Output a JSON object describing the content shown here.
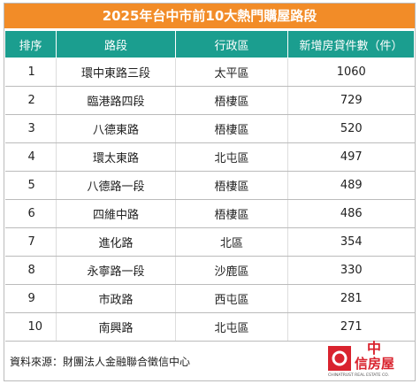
{
  "header": {
    "title": "2025年台中市前10大熱門購屋路段"
  },
  "table": {
    "columns": [
      "排序",
      "路段",
      "行政區",
      "新增房貸件數（件）"
    ],
    "rows": [
      [
        1,
        "環中東路三段",
        "太平區",
        1060
      ],
      [
        2,
        "臨港路四段",
        "梧棲區",
        729
      ],
      [
        3,
        "八德東路",
        "梧棲區",
        520
      ],
      [
        4,
        "環太東路",
        "北屯區",
        497
      ],
      [
        5,
        "八德路一段",
        "梧棲區",
        489
      ],
      [
        6,
        "四維中路",
        "梧棲區",
        486
      ],
      [
        7,
        "進化路",
        "北區",
        354
      ],
      [
        8,
        "永寧路一段",
        "沙鹿區",
        330
      ],
      [
        9,
        "市政路",
        "西屯區",
        281
      ],
      [
        10,
        "南興路",
        "北屯區",
        271
      ]
    ]
  },
  "footer": {
    "source": "資料來源：財團法人金融聯合徵信中心"
  },
  "logo": {
    "name_top": "中",
    "name_bottom": "信房屋",
    "tagline": "CHINATRUST REAL ESTATE CO."
  }
}
